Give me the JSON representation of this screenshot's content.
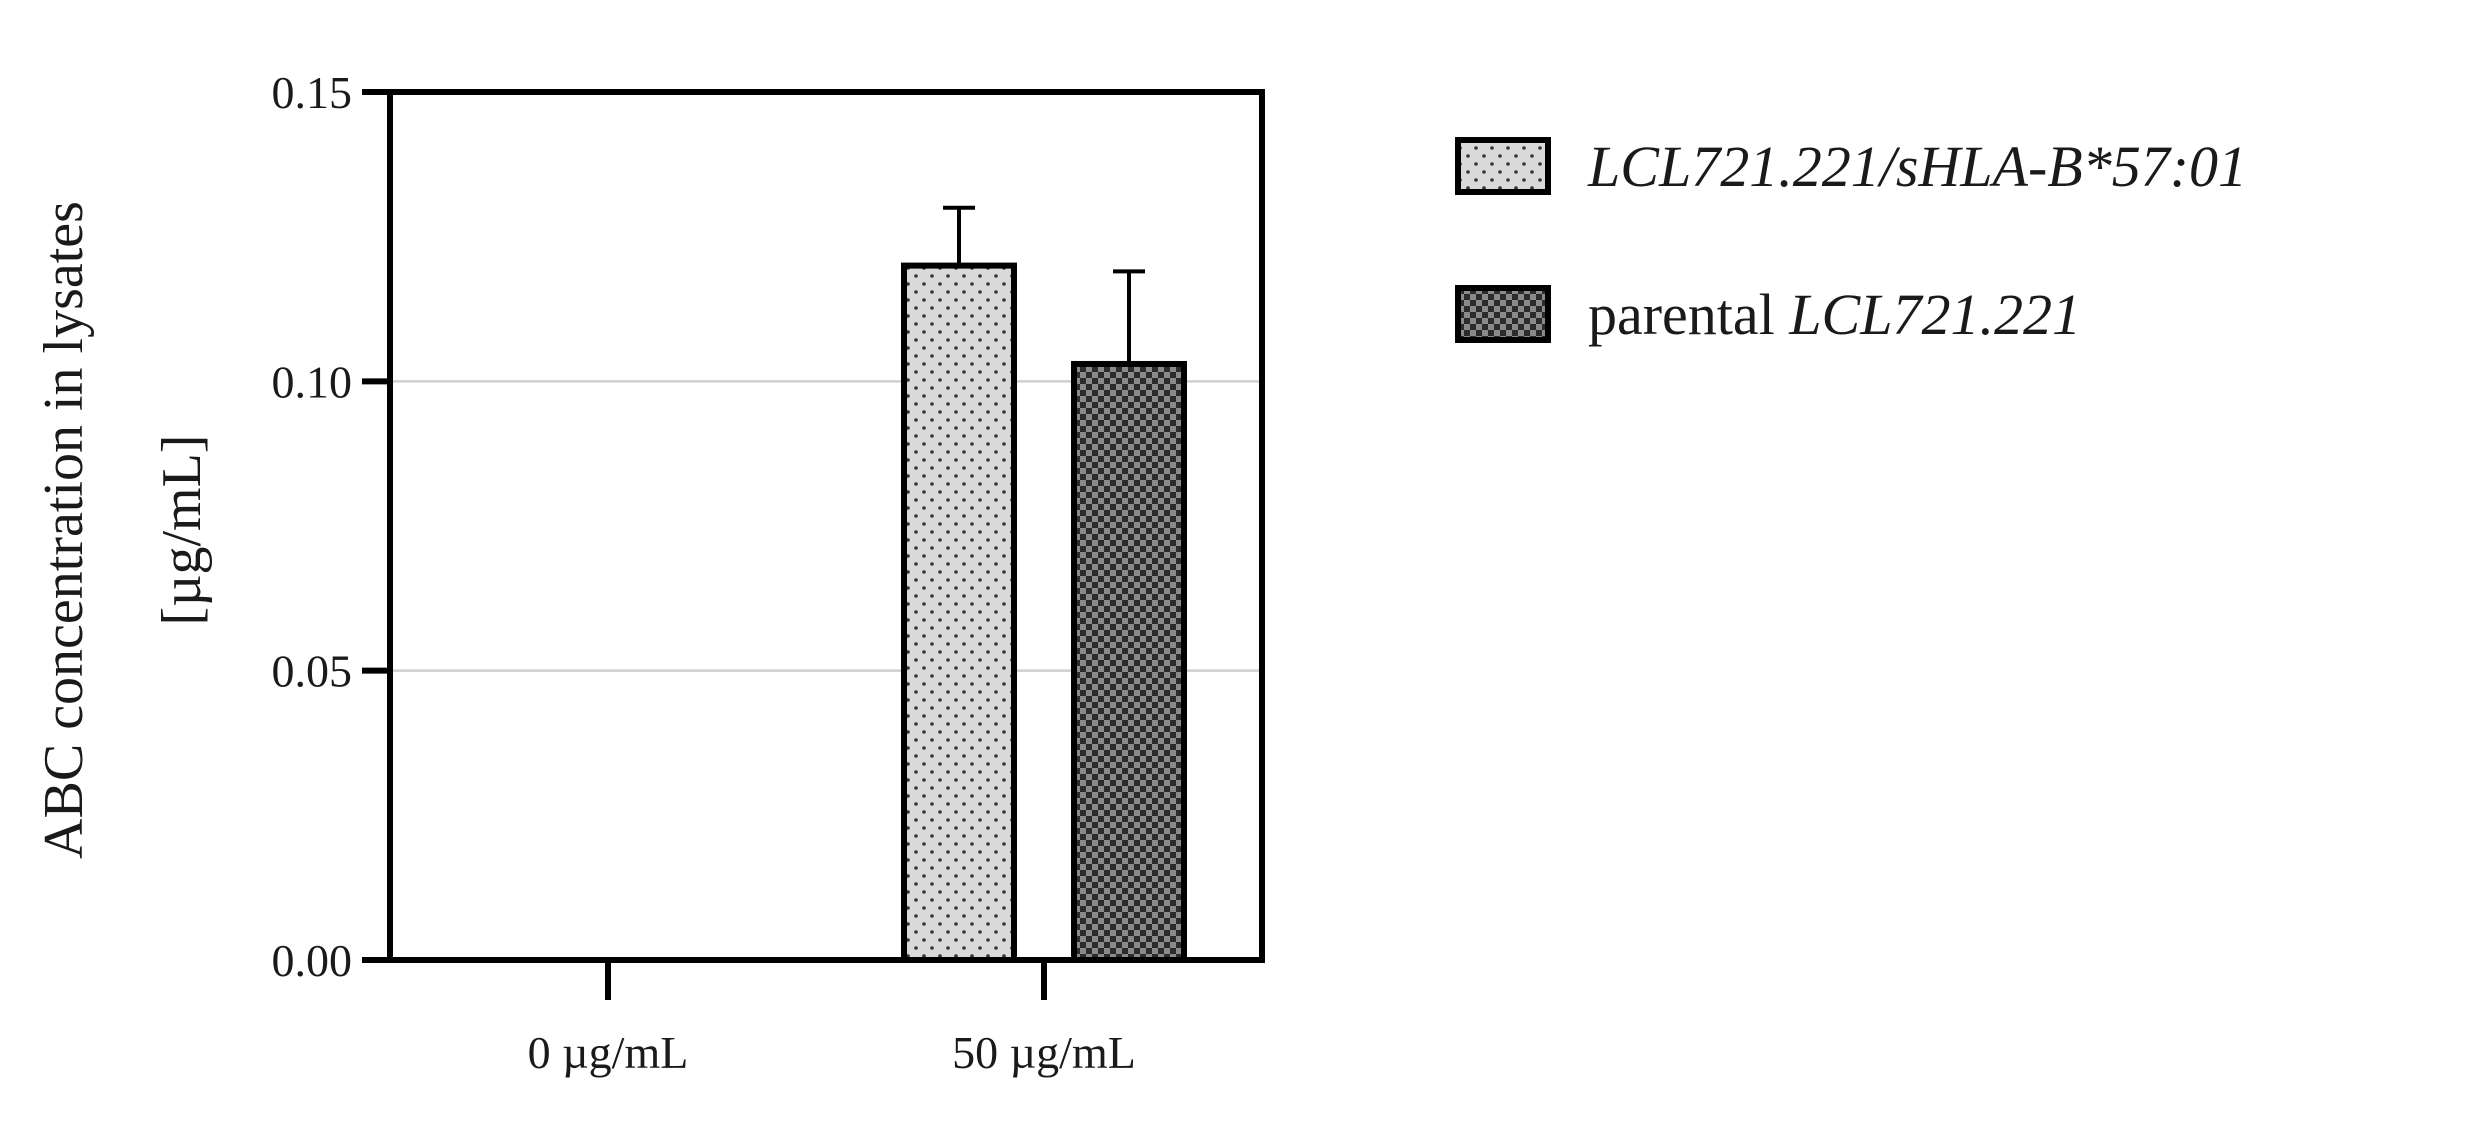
{
  "chart_data": {
    "type": "bar",
    "title": "",
    "xlabel": "",
    "ylabel_lines": [
      "ABC concentration in lysates",
      "[µg/mL]"
    ],
    "ylim": [
      0,
      0.15
    ],
    "yticks": [
      {
        "value": 0,
        "label": "0.00"
      },
      {
        "value": 0.05,
        "label": "0.05"
      },
      {
        "value": 0.1,
        "label": "0.10"
      },
      {
        "value": 0.15,
        "label": "0.15"
      }
    ],
    "gridlines": [
      0.05,
      0.1
    ],
    "categories": [
      "0 µg/mL",
      "50 µg/mL"
    ],
    "series": [
      {
        "name": "LCL721.221/sHLA-B*57:01",
        "legend_parts": [
          {
            "text": "LCL721.221/sHLA-B*57:01",
            "italic": true
          }
        ],
        "pattern": "dots",
        "fill": "#d9d9d9",
        "values": [
          0,
          0.12
        ],
        "errors": [
          0,
          0.01
        ]
      },
      {
        "name": "parental LCL721.221",
        "legend_parts": [
          {
            "text": "parental ",
            "italic": false
          },
          {
            "text": "LCL721.221",
            "italic": true
          }
        ],
        "pattern": "checker",
        "fill": "#4a4a4a",
        "values": [
          0,
          0.103
        ],
        "errors": [
          0,
          0.016
        ]
      }
    ],
    "legend_position": "top-right"
  }
}
